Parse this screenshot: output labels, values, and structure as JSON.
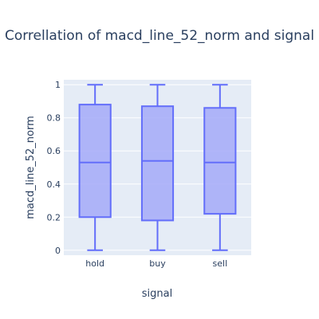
{
  "chart_data": {
    "type": "box",
    "title": "Correllation of macd_line_52_norm and signal",
    "xlabel": "signal",
    "ylabel": "macd_line_52_norm",
    "categories": [
      "hold",
      "buy",
      "sell"
    ],
    "ylim": [
      -0.03,
      1.03
    ],
    "yticks": [
      0,
      0.2,
      0.4,
      0.6,
      0.8,
      1
    ],
    "ytick_labels": [
      "0",
      "0.2",
      "0.4",
      "0.6",
      "0.8",
      "1"
    ],
    "grid": true,
    "boxes": [
      {
        "category": "hold",
        "min": 0,
        "q1": 0.2,
        "median": 0.53,
        "q3": 0.88,
        "max": 1
      },
      {
        "category": "buy",
        "min": 0,
        "q1": 0.18,
        "median": 0.54,
        "q3": 0.87,
        "max": 1
      },
      {
        "category": "sell",
        "min": 0,
        "q1": 0.22,
        "median": 0.53,
        "q3": 0.86,
        "max": 1
      }
    ],
    "colors": {
      "plot_bg": "#e5ecf6",
      "grid": "#ffffff",
      "box_fill": "#a4aaf8",
      "box_line": "#636efa",
      "text": "#2a3f5f"
    }
  }
}
